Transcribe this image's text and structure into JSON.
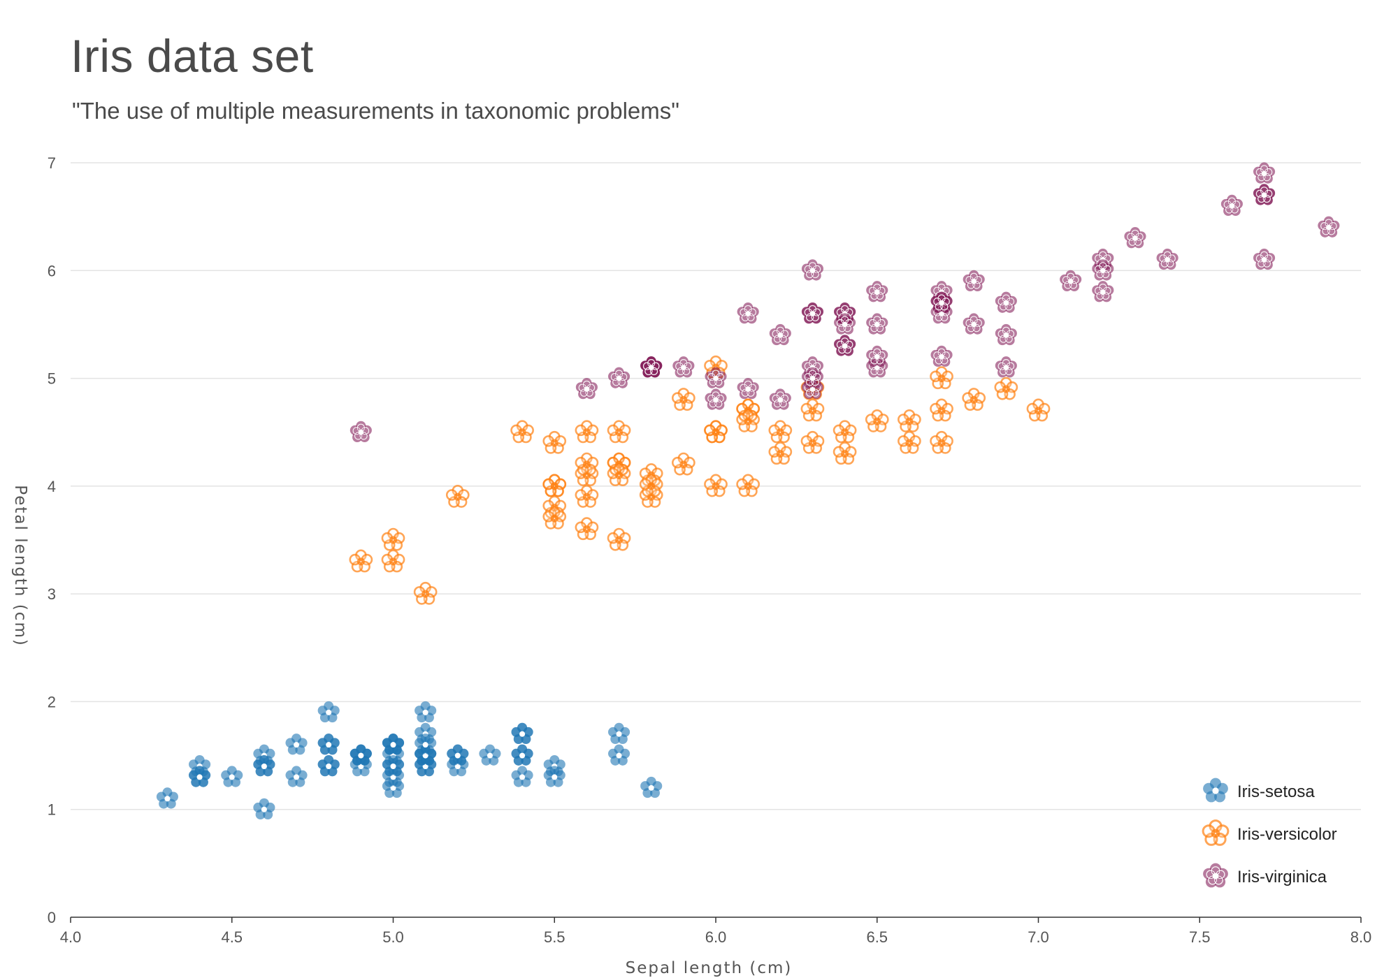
{
  "chart_data": {
    "type": "scatter",
    "title": "Iris data set",
    "subtitle": "\"The use of multiple measurements in taxonomic problems\"",
    "xlabel": "Sepal length (cm)",
    "ylabel": "Petal length (cm)",
    "xlim": [
      4.0,
      8.0
    ],
    "ylim": [
      0,
      7
    ],
    "xticks": [
      "4.0",
      "4.5",
      "5.0",
      "5.5",
      "6.0",
      "6.5",
      "7.0",
      "7.5",
      "8.0"
    ],
    "yticks": [
      "0",
      "1",
      "2",
      "3",
      "4",
      "5",
      "6",
      "7"
    ],
    "grid": true,
    "legend_position": "bottom-right",
    "series": [
      {
        "name": "Iris-setosa",
        "color": "#1f77b4",
        "marker": "filled-flower",
        "points": [
          [
            5.1,
            1.4
          ],
          [
            4.9,
            1.4
          ],
          [
            4.7,
            1.3
          ],
          [
            4.6,
            1.5
          ],
          [
            5.0,
            1.4
          ],
          [
            5.4,
            1.7
          ],
          [
            4.6,
            1.4
          ],
          [
            5.0,
            1.5
          ],
          [
            4.4,
            1.4
          ],
          [
            4.9,
            1.5
          ],
          [
            5.4,
            1.5
          ],
          [
            4.8,
            1.6
          ],
          [
            4.8,
            1.4
          ],
          [
            4.3,
            1.1
          ],
          [
            5.8,
            1.2
          ],
          [
            5.7,
            1.5
          ],
          [
            5.4,
            1.3
          ],
          [
            5.1,
            1.4
          ],
          [
            5.7,
            1.7
          ],
          [
            5.1,
            1.5
          ],
          [
            5.4,
            1.7
          ],
          [
            5.1,
            1.5
          ],
          [
            4.6,
            1.0
          ],
          [
            5.1,
            1.7
          ],
          [
            4.8,
            1.9
          ],
          [
            5.0,
            1.6
          ],
          [
            5.0,
            1.6
          ],
          [
            5.2,
            1.5
          ],
          [
            5.2,
            1.4
          ],
          [
            4.7,
            1.6
          ],
          [
            4.8,
            1.6
          ],
          [
            5.4,
            1.5
          ],
          [
            5.2,
            1.5
          ],
          [
            5.5,
            1.4
          ],
          [
            4.9,
            1.5
          ],
          [
            5.0,
            1.2
          ],
          [
            5.5,
            1.3
          ],
          [
            4.9,
            1.5
          ],
          [
            4.4,
            1.3
          ],
          [
            5.1,
            1.5
          ],
          [
            5.0,
            1.3
          ],
          [
            4.5,
            1.3
          ],
          [
            4.4,
            1.3
          ],
          [
            5.0,
            1.6
          ],
          [
            5.1,
            1.9
          ],
          [
            4.8,
            1.4
          ],
          [
            5.1,
            1.6
          ],
          [
            4.6,
            1.4
          ],
          [
            5.3,
            1.5
          ],
          [
            5.0,
            1.4
          ]
        ]
      },
      {
        "name": "Iris-versicolor",
        "color": "#ff7f0e",
        "marker": "outline-flower",
        "points": [
          [
            7.0,
            4.7
          ],
          [
            6.4,
            4.5
          ],
          [
            6.9,
            4.9
          ],
          [
            5.5,
            4.0
          ],
          [
            6.5,
            4.6
          ],
          [
            5.7,
            4.5
          ],
          [
            6.3,
            4.7
          ],
          [
            4.9,
            3.3
          ],
          [
            6.6,
            4.6
          ],
          [
            5.2,
            3.9
          ],
          [
            5.0,
            3.5
          ],
          [
            5.9,
            4.2
          ],
          [
            6.0,
            4.0
          ],
          [
            6.1,
            4.7
          ],
          [
            5.6,
            3.6
          ],
          [
            6.7,
            4.4
          ],
          [
            5.6,
            4.5
          ],
          [
            5.8,
            4.1
          ],
          [
            6.2,
            4.5
          ],
          [
            5.6,
            3.9
          ],
          [
            5.9,
            4.8
          ],
          [
            6.1,
            4.0
          ],
          [
            6.3,
            4.9
          ],
          [
            6.1,
            4.7
          ],
          [
            6.4,
            4.3
          ],
          [
            6.6,
            4.4
          ],
          [
            6.8,
            4.8
          ],
          [
            6.7,
            5.0
          ],
          [
            6.0,
            4.5
          ],
          [
            5.7,
            3.5
          ],
          [
            5.5,
            3.8
          ],
          [
            5.5,
            3.7
          ],
          [
            5.8,
            3.9
          ],
          [
            6.0,
            5.1
          ],
          [
            5.4,
            4.5
          ],
          [
            6.0,
            4.5
          ],
          [
            6.7,
            4.7
          ],
          [
            6.3,
            4.4
          ],
          [
            5.6,
            4.1
          ],
          [
            5.5,
            4.0
          ],
          [
            5.5,
            4.4
          ],
          [
            6.1,
            4.6
          ],
          [
            5.8,
            4.0
          ],
          [
            5.0,
            3.3
          ],
          [
            5.6,
            4.2
          ],
          [
            5.7,
            4.2
          ],
          [
            5.7,
            4.2
          ],
          [
            6.2,
            4.3
          ],
          [
            5.1,
            3.0
          ],
          [
            5.7,
            4.1
          ]
        ]
      },
      {
        "name": "Iris-virginica",
        "color": "#7b0f4e",
        "marker": "flower-with-ring",
        "points": [
          [
            6.3,
            6.0
          ],
          [
            5.8,
            5.1
          ],
          [
            7.1,
            5.9
          ],
          [
            6.3,
            5.6
          ],
          [
            6.5,
            5.8
          ],
          [
            7.6,
            6.6
          ],
          [
            4.9,
            4.5
          ],
          [
            7.3,
            6.3
          ],
          [
            6.7,
            5.8
          ],
          [
            7.2,
            6.1
          ],
          [
            6.5,
            5.1
          ],
          [
            6.4,
            5.3
          ],
          [
            6.8,
            5.5
          ],
          [
            5.7,
            5.0
          ],
          [
            5.8,
            5.1
          ],
          [
            6.4,
            5.3
          ],
          [
            6.5,
            5.5
          ],
          [
            7.7,
            6.7
          ],
          [
            7.7,
            6.9
          ],
          [
            6.0,
            5.0
          ],
          [
            6.9,
            5.7
          ],
          [
            5.6,
            4.9
          ],
          [
            7.7,
            6.7
          ],
          [
            6.3,
            4.9
          ],
          [
            6.7,
            5.7
          ],
          [
            7.2,
            6.0
          ],
          [
            6.2,
            4.8
          ],
          [
            6.1,
            4.9
          ],
          [
            6.4,
            5.6
          ],
          [
            7.2,
            5.8
          ],
          [
            7.4,
            6.1
          ],
          [
            7.9,
            6.4
          ],
          [
            6.4,
            5.6
          ],
          [
            6.3,
            5.1
          ],
          [
            6.1,
            5.6
          ],
          [
            7.7,
            6.1
          ],
          [
            6.3,
            5.6
          ],
          [
            6.4,
            5.5
          ],
          [
            6.0,
            4.8
          ],
          [
            6.9,
            5.4
          ],
          [
            6.7,
            5.6
          ],
          [
            6.9,
            5.1
          ],
          [
            5.8,
            5.1
          ],
          [
            6.8,
            5.9
          ],
          [
            6.7,
            5.7
          ],
          [
            6.7,
            5.2
          ],
          [
            6.3,
            5.0
          ],
          [
            6.5,
            5.2
          ],
          [
            6.2,
            5.4
          ],
          [
            5.9,
            5.1
          ]
        ]
      }
    ]
  }
}
